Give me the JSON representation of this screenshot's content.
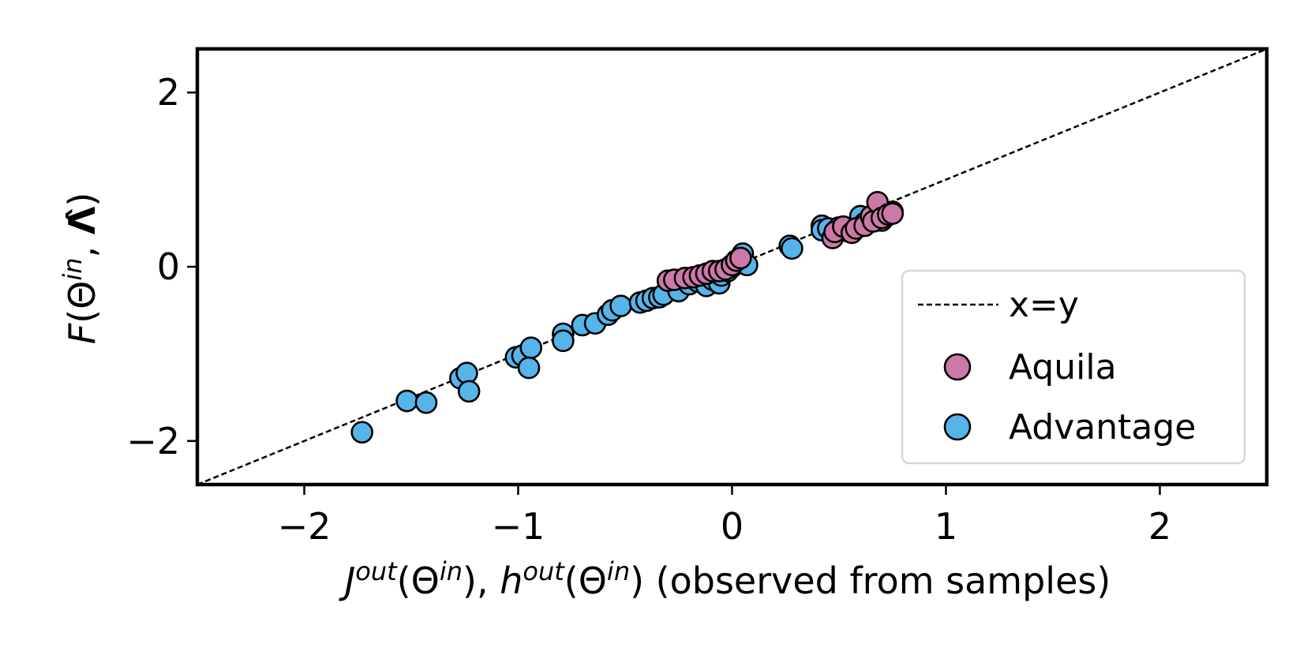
{
  "chart_data": {
    "type": "scatter",
    "title": "",
    "xlabel": {
      "parts": [
        {
          "t": "J",
          "style": "italic"
        },
        {
          "t": "out",
          "style": "italic-sup"
        },
        {
          "t": "(Θ",
          "style": "normal"
        },
        {
          "t": "in",
          "style": "italic-sup"
        },
        {
          "t": "), ",
          "style": "normal"
        },
        {
          "t": "h",
          "style": "italic"
        },
        {
          "t": "out",
          "style": "italic-sup"
        },
        {
          "t": "(Θ",
          "style": "normal"
        },
        {
          "t": "in",
          "style": "italic-sup"
        },
        {
          "t": ") (observed from samples)",
          "style": "normal"
        }
      ]
    },
    "ylabel": {
      "parts": [
        {
          "t": "F",
          "style": "italic"
        },
        {
          "t": "(Θ",
          "style": "normal"
        },
        {
          "t": "in",
          "style": "italic-sup"
        },
        {
          "t": ", ",
          "style": "normal"
        },
        {
          "t": "Λ̂",
          "style": "bold"
        },
        {
          "t": ")",
          "style": "normal"
        }
      ]
    },
    "xlim": [
      -2.5,
      2.5
    ],
    "ylim": [
      -2.5,
      2.5
    ],
    "xticks": [
      -2,
      -1,
      0,
      1,
      2
    ],
    "yticks": [
      -2,
      0,
      2
    ],
    "xticklabels": [
      "−2",
      "−1",
      "0",
      "1",
      "2"
    ],
    "yticklabels": [
      "−2",
      "0",
      "2"
    ],
    "grid": false,
    "legend_position": "lower-right",
    "reference_line": {
      "label": "x=y",
      "style": "dashed",
      "color": "#000000"
    },
    "series": [
      {
        "name": "Advantage",
        "color": "#56b4e9",
        "points": [
          [
            -1.73,
            -1.9
          ],
          [
            -1.52,
            -1.54
          ],
          [
            -1.43,
            -1.56
          ],
          [
            -1.27,
            -1.28
          ],
          [
            -1.24,
            -1.22
          ],
          [
            -1.23,
            -1.43
          ],
          [
            -1.01,
            -1.04
          ],
          [
            -0.98,
            -1.02
          ],
          [
            -0.94,
            -0.93
          ],
          [
            -0.95,
            -1.16
          ],
          [
            -0.79,
            -0.77
          ],
          [
            -0.79,
            -0.85
          ],
          [
            -0.7,
            -0.67
          ],
          [
            -0.64,
            -0.65
          ],
          [
            -0.58,
            -0.55
          ],
          [
            -0.56,
            -0.5
          ],
          [
            -0.52,
            -0.45
          ],
          [
            -0.43,
            -0.41
          ],
          [
            -0.4,
            -0.39
          ],
          [
            -0.37,
            -0.36
          ],
          [
            -0.34,
            -0.35
          ],
          [
            -0.32,
            -0.32
          ],
          [
            -0.25,
            -0.28
          ],
          [
            -0.2,
            -0.2
          ],
          [
            -0.16,
            -0.17
          ],
          [
            -0.12,
            -0.22
          ],
          [
            -0.09,
            -0.15
          ],
          [
            -0.06,
            -0.19
          ],
          [
            -0.05,
            -0.1
          ],
          [
            -0.02,
            -0.05
          ],
          [
            0.0,
            0.0
          ],
          [
            0.03,
            0.06
          ],
          [
            0.05,
            0.15
          ],
          [
            0.07,
            0.02
          ],
          [
            0.27,
            0.24
          ],
          [
            0.28,
            0.21
          ],
          [
            0.42,
            0.47
          ],
          [
            0.42,
            0.42
          ],
          [
            0.45,
            0.44
          ],
          [
            0.5,
            0.45
          ],
          [
            0.55,
            0.4
          ],
          [
            0.57,
            0.45
          ],
          [
            0.6,
            0.58
          ],
          [
            0.62,
            0.5
          ],
          [
            0.65,
            0.55
          ],
          [
            0.68,
            0.62
          ],
          [
            0.7,
            0.53
          ],
          [
            0.72,
            0.58
          ],
          [
            0.75,
            0.63
          ]
        ]
      },
      {
        "name": "Aquila",
        "color": "#cc79a7",
        "points": [
          [
            -0.3,
            -0.16
          ],
          [
            -0.27,
            -0.15
          ],
          [
            -0.22,
            -0.13
          ],
          [
            -0.18,
            -0.12
          ],
          [
            -0.15,
            -0.1
          ],
          [
            -0.12,
            -0.08
          ],
          [
            -0.09,
            -0.05
          ],
          [
            -0.06,
            -0.05
          ],
          [
            -0.03,
            -0.03
          ],
          [
            0.0,
            0.02
          ],
          [
            0.02,
            0.07
          ],
          [
            0.04,
            0.1
          ],
          [
            0.47,
            0.33
          ],
          [
            0.48,
            0.4
          ],
          [
            0.52,
            0.46
          ],
          [
            0.56,
            0.39
          ],
          [
            0.58,
            0.44
          ],
          [
            0.62,
            0.47
          ],
          [
            0.65,
            0.58
          ],
          [
            0.66,
            0.52
          ],
          [
            0.68,
            0.74
          ],
          [
            0.7,
            0.56
          ],
          [
            0.73,
            0.6
          ],
          [
            0.75,
            0.61
          ]
        ]
      }
    ]
  }
}
